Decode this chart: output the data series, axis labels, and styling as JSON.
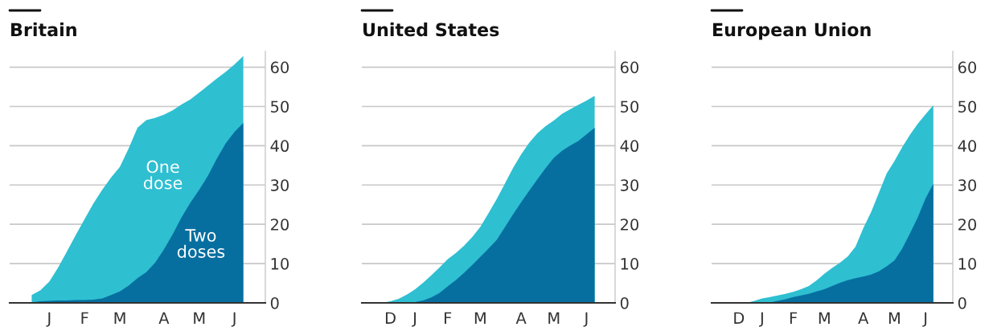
{
  "chart_data": [
    {
      "type": "area",
      "title": "Britain",
      "ylim": [
        0,
        64
      ],
      "yticks": [
        0,
        10,
        20,
        30,
        40,
        50,
        60
      ],
      "grid": "y",
      "categories": [
        null,
        null,
        "J",
        null,
        null,
        null,
        "F",
        null,
        null,
        null,
        "M",
        null,
        null,
        null,
        null,
        "A",
        null,
        null,
        null,
        "M",
        null,
        null,
        null,
        "J",
        null
      ],
      "series": [
        {
          "name": "One dose",
          "color": "#2ebfd1",
          "values": [
            2.0,
            3.2,
            5.4,
            9.0,
            13.1,
            17.3,
            21.3,
            25.3,
            28.8,
            31.9,
            34.6,
            39.3,
            44.6,
            46.5,
            47.1,
            47.9,
            49.0,
            50.5,
            51.8,
            53.5,
            55.3,
            57.1,
            58.8,
            60.7,
            62.8
          ]
        },
        {
          "name": "Two doses",
          "color": "#076fa0",
          "values": [
            0.1,
            0.4,
            0.5,
            0.6,
            0.6,
            0.7,
            0.7,
            0.8,
            1.1,
            2.0,
            2.9,
            4.4,
            6.3,
            7.8,
            10.2,
            13.6,
            17.5,
            21.8,
            25.5,
            28.8,
            32.4,
            36.7,
            40.6,
            43.5,
            45.8
          ]
        }
      ]
    },
    {
      "type": "area",
      "title": "United States",
      "ylim": [
        0,
        64
      ],
      "yticks": [
        0,
        10,
        20,
        30,
        40,
        50,
        60
      ],
      "grid": "y",
      "categories": [
        null,
        "D",
        null,
        null,
        "J",
        null,
        null,
        null,
        "F",
        null,
        null,
        null,
        "M",
        null,
        null,
        null,
        null,
        "A",
        null,
        null,
        null,
        "M",
        null,
        null,
        null,
        "J",
        null
      ],
      "series": [
        {
          "color": "#2ebfd1",
          "values": [
            0,
            0.4,
            1.0,
            2.1,
            3.4,
            5.1,
            7.0,
            9.0,
            11.1,
            12.7,
            14.5,
            16.7,
            19.3,
            22.8,
            26.4,
            30.3,
            34.3,
            37.8,
            40.8,
            43.2,
            45.0,
            46.4,
            48.1,
            49.3,
            50.4,
            51.5,
            52.7
          ]
        },
        {
          "color": "#076fa0",
          "values": [
            0,
            0,
            0,
            0.1,
            0.2,
            0.6,
            1.4,
            2.5,
            4.2,
            5.8,
            7.6,
            9.6,
            11.7,
            13.8,
            16.0,
            19.2,
            22.5,
            25.6,
            28.6,
            31.5,
            34.3,
            36.9,
            38.7,
            40.0,
            41.2,
            42.9,
            44.6
          ]
        }
      ]
    },
    {
      "type": "area",
      "title": "European Union",
      "ylim": [
        0,
        64
      ],
      "yticks": [
        0,
        10,
        20,
        30,
        40,
        50,
        60
      ],
      "grid": "y",
      "categories": [
        null,
        "D",
        null,
        null,
        "J",
        null,
        null,
        null,
        "F",
        null,
        null,
        null,
        "M",
        null,
        null,
        null,
        null,
        "A",
        null,
        null,
        null,
        "M",
        null,
        null,
        null,
        "J",
        null
      ],
      "series": [
        {
          "color": "#2ebfd1",
          "values": [
            null,
            0,
            0,
            0.5,
            1.1,
            1.5,
            1.9,
            2.3,
            2.8,
            3.5,
            4.3,
            5.7,
            7.4,
            8.9,
            10.2,
            11.8,
            14.3,
            19.0,
            23.1,
            28.0,
            32.9,
            36.1,
            39.6,
            42.8,
            45.6,
            48.0,
            50.3
          ]
        },
        {
          "color": "#076fa0",
          "values": [
            null,
            null,
            null,
            null,
            null,
            0.1,
            0.5,
            0.9,
            1.5,
            1.9,
            2.3,
            2.9,
            3.5,
            4.3,
            5.1,
            5.8,
            6.3,
            6.7,
            7.2,
            8.0,
            9.3,
            10.8,
            13.8,
            17.7,
            21.8,
            26.6,
            30.3
          ]
        }
      ]
    }
  ]
}
